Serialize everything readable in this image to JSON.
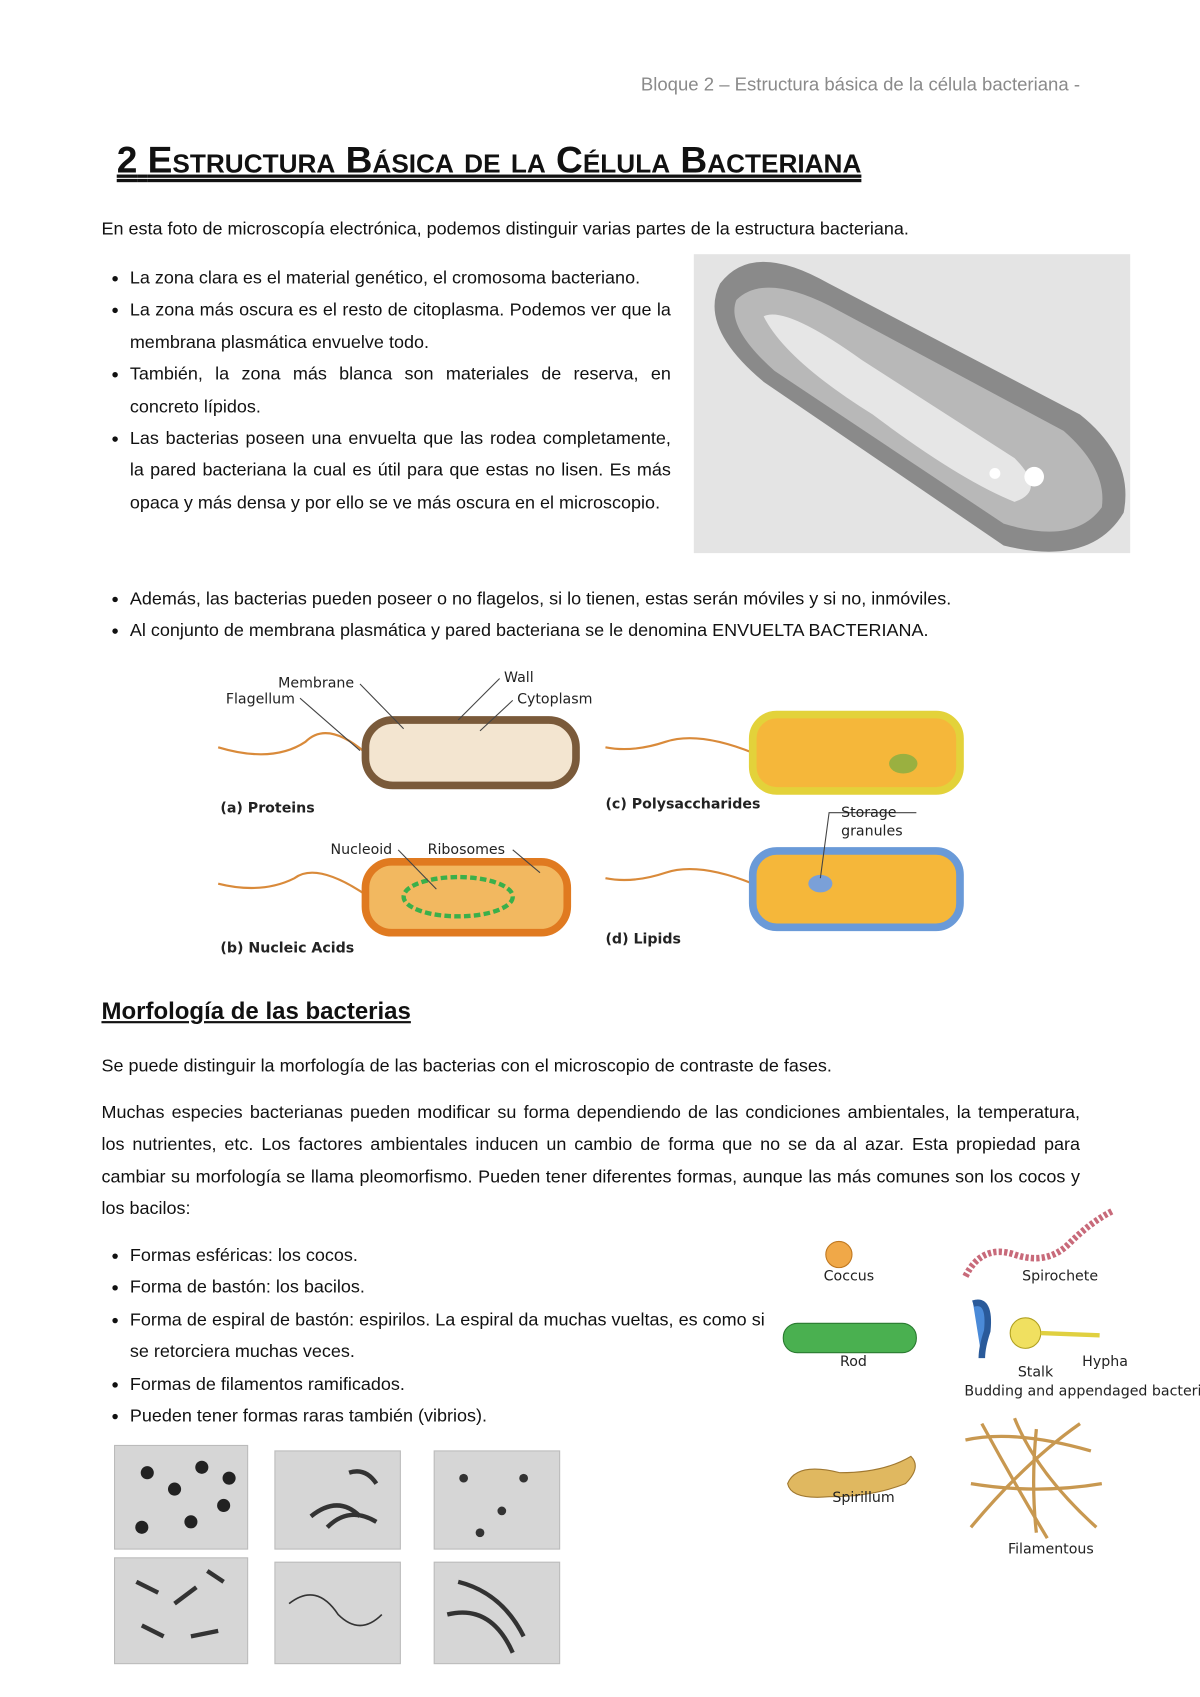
{
  "header": "Bloque 2 – Estructura básica de la célula bacteriana -",
  "title": {
    "number": "2",
    "text": "Estructura Básica de la Célula Bacteriana"
  },
  "intro": "En esta foto de microscopía electrónica, podemos distinguir varias partes de la estructura bacteriana.",
  "bullets1": [
    "La zona clara es el material genético, el cromosoma bacteriano.",
    "La zona más oscura es el resto de citoplasma. Podemos ver que la membrana plasmática envuelve todo.",
    "También, la zona más blanca son materiales de reserva, en concreto lípidos.",
    "Las bacterias poseen una envuelta que las rodea completamente, la pared bacteriana la cual es útil para que estas no lisen. Es más opaca y más densa y por ello se ve más oscura en el microscopio.",
    "Además, las bacterias pueden poseer o no flagelos, si lo tienen, estas serán móviles y si no, inmóviles.",
    "Al conjunto de membrana plasmática y pared bacteriana se le denomina ENVUELTA BACTERIANA."
  ],
  "figure1": {
    "membrane": "Membrane",
    "flagellum": "Flagellum",
    "wall": "Wall",
    "cytoplasm": "Cytoplasm",
    "proteins": "(a) Proteins",
    "polysaccharides": "(c) Polysaccharides",
    "storage_granules": [
      "Storage",
      "granules"
    ],
    "nucleoid": "Nucleoid",
    "ribosomes": "Ribosomes",
    "nucleic_acids": "(b) Nucleic Acids",
    "lipids": "(d) Lipids"
  },
  "section": {
    "heading": "Morfología de las bacterias",
    "paragraphs": [
      "Se puede distinguir la morfología de las bacterias con el microscopio de contraste de fases.",
      "Muchas especies bacterianas pueden modificar su forma dependiendo de las condiciones ambientales, la temperatura, los nutrientes, etc. Los factores ambientales inducen un cambio de forma que no se da al azar. Esta propiedad para cambiar su morfología se llama pleomorfismo. Pueden tener diferentes formas, aunque las más comunes son los cocos y los bacilos:"
    ],
    "bullets": [
      "Formas esféricas: los cocos.",
      "Forma de bastón: los bacilos.",
      "Forma de espiral de bastón: espirilos. La espiral da muchas vueltas, es como si se retorciera muchas veces.",
      "Formas de filamentos ramificados.",
      "Pueden tener formas raras también (vibrios)."
    ]
  },
  "figure2": {
    "coccus": "Coccus",
    "spirochete": "Spirochete",
    "rod": "Rod",
    "stalk": "Stalk",
    "hypha": "Hypha",
    "budding": "Budding and appendaged bacteria",
    "spirillum": "Spirillum",
    "filamentous": "Filamentous"
  }
}
